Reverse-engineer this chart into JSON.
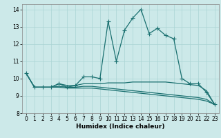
{
  "xlabel": "Humidex (Indice chaleur)",
  "xlim": [
    -0.5,
    23.5
  ],
  "ylim": [
    8,
    14.3
  ],
  "yticks": [
    8,
    9,
    10,
    11,
    12,
    13,
    14
  ],
  "xticks": [
    0,
    1,
    2,
    3,
    4,
    5,
    6,
    7,
    8,
    9,
    10,
    11,
    12,
    13,
    14,
    15,
    16,
    17,
    18,
    19,
    20,
    21,
    22,
    23
  ],
  "background_color": "#cce9e9",
  "grid_color": "#aad4d4",
  "line_color": "#1a7070",
  "line1_x": [
    0,
    1,
    2,
    3,
    4,
    5,
    6,
    7,
    8,
    9,
    10,
    11,
    12,
    13,
    14,
    15,
    16,
    17,
    18,
    19,
    20,
    21,
    22,
    23
  ],
  "line1_y": [
    10.3,
    9.5,
    9.5,
    9.5,
    9.7,
    9.5,
    9.6,
    10.1,
    10.1,
    10.0,
    13.3,
    11.0,
    12.8,
    13.5,
    14.0,
    12.6,
    12.9,
    12.5,
    12.3,
    10.0,
    9.7,
    9.7,
    9.2,
    8.5
  ],
  "line2_x": [
    0,
    1,
    2,
    3,
    4,
    5,
    6,
    7,
    8,
    9,
    10,
    11,
    12,
    13,
    14,
    15,
    16,
    17,
    18,
    19,
    20,
    21,
    22,
    23
  ],
  "line2_y": [
    10.3,
    9.5,
    9.5,
    9.5,
    9.7,
    9.6,
    9.6,
    9.7,
    9.7,
    9.7,
    9.75,
    9.75,
    9.75,
    9.8,
    9.8,
    9.8,
    9.8,
    9.8,
    9.75,
    9.7,
    9.65,
    9.6,
    9.3,
    8.5
  ],
  "line3_x": [
    0,
    1,
    2,
    3,
    4,
    5,
    6,
    7,
    8,
    9,
    10,
    11,
    12,
    13,
    14,
    15,
    16,
    17,
    18,
    19,
    20,
    21,
    22,
    23
  ],
  "line3_y": [
    10.3,
    9.5,
    9.5,
    9.5,
    9.55,
    9.5,
    9.5,
    9.55,
    9.55,
    9.5,
    9.45,
    9.4,
    9.35,
    9.3,
    9.25,
    9.2,
    9.15,
    9.1,
    9.05,
    9.0,
    8.95,
    8.9,
    8.8,
    8.5
  ],
  "line4_x": [
    0,
    1,
    2,
    3,
    4,
    5,
    6,
    7,
    8,
    9,
    10,
    11,
    12,
    13,
    14,
    15,
    16,
    17,
    18,
    19,
    20,
    21,
    22,
    23
  ],
  "line4_y": [
    10.3,
    9.5,
    9.5,
    9.5,
    9.5,
    9.45,
    9.45,
    9.45,
    9.45,
    9.4,
    9.35,
    9.3,
    9.25,
    9.2,
    9.15,
    9.1,
    9.05,
    9.0,
    8.95,
    8.9,
    8.85,
    8.8,
    8.7,
    8.5
  ],
  "marker": "+",
  "markersize": 4,
  "linewidth": 0.9,
  "label_fontsize": 6.5,
  "tick_fontsize": 5.5
}
